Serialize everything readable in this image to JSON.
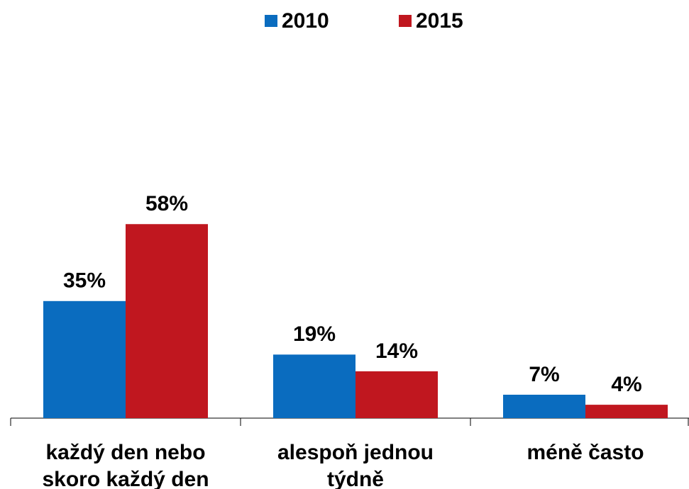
{
  "chart_data": {
    "type": "bar",
    "categories": [
      "každý den nebo skoro každý den",
      "alespoň jednou týdně",
      "méně často"
    ],
    "series": [
      {
        "name": "2010",
        "color": "#0a6cbf",
        "values": [
          35,
          19,
          7
        ],
        "value_labels": [
          "35%",
          "19%",
          "7%"
        ]
      },
      {
        "name": "2015",
        "color": "#c0171f",
        "values": [
          58,
          14,
          4
        ],
        "value_labels": [
          "58%",
          "14%",
          "4%"
        ]
      }
    ]
  }
}
